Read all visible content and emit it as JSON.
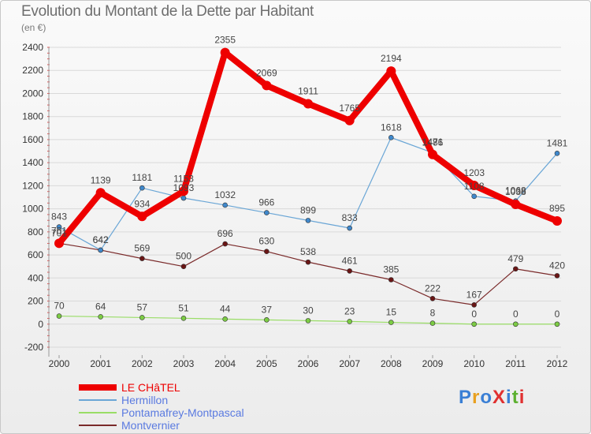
{
  "title": "Evolution du Montant de la Dette par Habitant",
  "unit": "(en €)",
  "logo": {
    "text": "ProXiti",
    "colors": [
      "#3a7fd5",
      "#e8a020",
      "#3a7fd5",
      "#e03030",
      "#3a7fd5",
      "#5cb030",
      "#e03030"
    ]
  },
  "chart_data": {
    "type": "line",
    "title": "Evolution du Montant de la Dette par Habitant",
    "ylabel": "(en €)",
    "xlabel": "",
    "x": [
      "2000",
      "2001",
      "2002",
      "2003",
      "2004",
      "2005",
      "2006",
      "2007",
      "2008",
      "2009",
      "2010",
      "2011",
      "2012"
    ],
    "ylim": [
      -200,
      2400
    ],
    "yticks": [
      -200,
      0,
      200,
      400,
      600,
      800,
      1000,
      1200,
      1400,
      1600,
      1800,
      2000,
      2200,
      2400
    ],
    "grid": true,
    "legend_position": "bottom-left",
    "series": [
      {
        "name": "LE CHâTEL",
        "color": "#ee0000",
        "marker": "#ee0000",
        "width": 8,
        "values": [
          701,
          1139,
          934,
          1153,
          2355,
          2069,
          1911,
          1765,
          2194,
          1471,
          1203,
          1038,
          895
        ],
        "labels": [
          "701",
          "1139",
          "934",
          "1153",
          "2355",
          "2069",
          "1911",
          "1765",
          "2194",
          "1471",
          "1203",
          "1038",
          "895"
        ]
      },
      {
        "name": "Hermillon",
        "color": "#6aa6d6",
        "marker": "#3f88cc",
        "width": 1.2,
        "values": [
          843,
          642,
          1181,
          1093,
          1032,
          966,
          899,
          833,
          1618,
          1486,
          1108,
          1068,
          1481
        ],
        "labels": [
          "843",
          "642",
          "1181",
          "1093",
          "1032",
          "966",
          "899",
          "833",
          "1618",
          "1486",
          "1108",
          "1068",
          "1481"
        ]
      },
      {
        "name": "Pontamafrey-Montpascal",
        "color": "#99dd66",
        "marker": "#7ccc44",
        "width": 1.2,
        "values": [
          70,
          64,
          57,
          51,
          44,
          37,
          30,
          23,
          15,
          8,
          0,
          0,
          0
        ],
        "labels": [
          "70",
          "64",
          "57",
          "51",
          "44",
          "37",
          "30",
          "23",
          "15",
          "8",
          "0",
          "0",
          "0"
        ]
      },
      {
        "name": "Montvernier",
        "color": "#7a2a2a",
        "marker": "#6a1515",
        "width": 1.2,
        "values": [
          701,
          642,
          569,
          500,
          696,
          630,
          538,
          461,
          385,
          222,
          167,
          479,
          420
        ],
        "labels": [
          "701",
          "642",
          "569",
          "500",
          "696",
          "630",
          "538",
          "461",
          "385",
          "222",
          "167",
          "479",
          "420"
        ]
      }
    ]
  }
}
